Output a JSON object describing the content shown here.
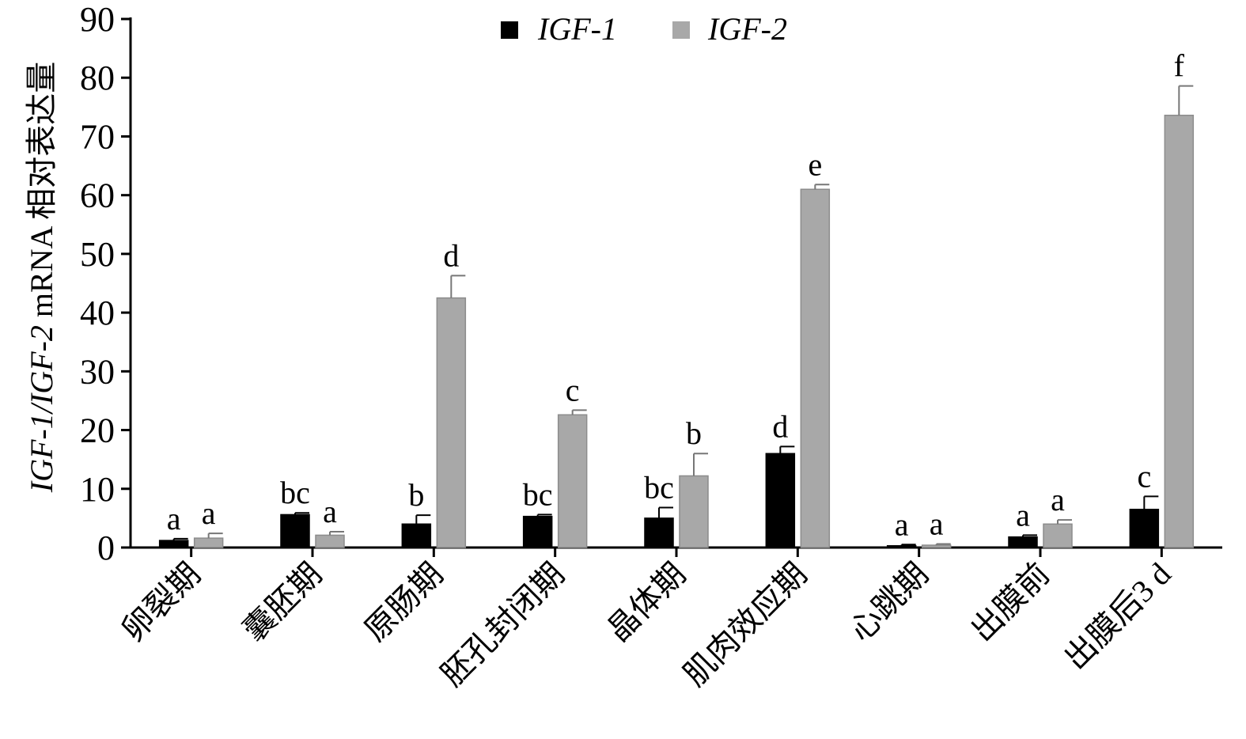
{
  "chart_data": {
    "type": "bar",
    "title": "",
    "xlabel": "",
    "ylabel_parts": {
      "italic": "IGF-1/IGF-2",
      "plain": " mRNA 相对表达量"
    },
    "ylim": [
      0,
      90
    ],
    "yticks": [
      0,
      10,
      20,
      30,
      40,
      50,
      60,
      70,
      80,
      90
    ],
    "legend_position": "top-center",
    "categories": [
      "卵裂期",
      "囊胚期",
      "原肠期",
      "胚孔封闭期",
      "晶体期",
      "肌肉效应期",
      "心跳期",
      "出膜前",
      "出膜后3 d"
    ],
    "series": [
      {
        "name": "IGF-1",
        "color": "#000000",
        "values": [
          1.2,
          5.6,
          4.0,
          5.3,
          5.0,
          16.0,
          0.3,
          1.8,
          6.5
        ],
        "errors": [
          0.3,
          0.3,
          1.5,
          0.3,
          1.8,
          1.2,
          0.2,
          0.3,
          2.2
        ],
        "labels": [
          "a",
          "bc",
          "b",
          "bc",
          "bc",
          "d",
          "a",
          "a",
          "c"
        ]
      },
      {
        "name": "IGF-2",
        "color": "#a8a8a8",
        "values": [
          1.6,
          2.1,
          42.5,
          22.6,
          12.2,
          61.0,
          0.4,
          4.0,
          73.6
        ],
        "errors": [
          0.8,
          0.6,
          3.8,
          0.8,
          3.8,
          0.8,
          0.2,
          0.7,
          5.0
        ],
        "labels": [
          "a",
          "a",
          "d",
          "c",
          "b",
          "e",
          "a",
          "a",
          "f"
        ]
      }
    ]
  }
}
